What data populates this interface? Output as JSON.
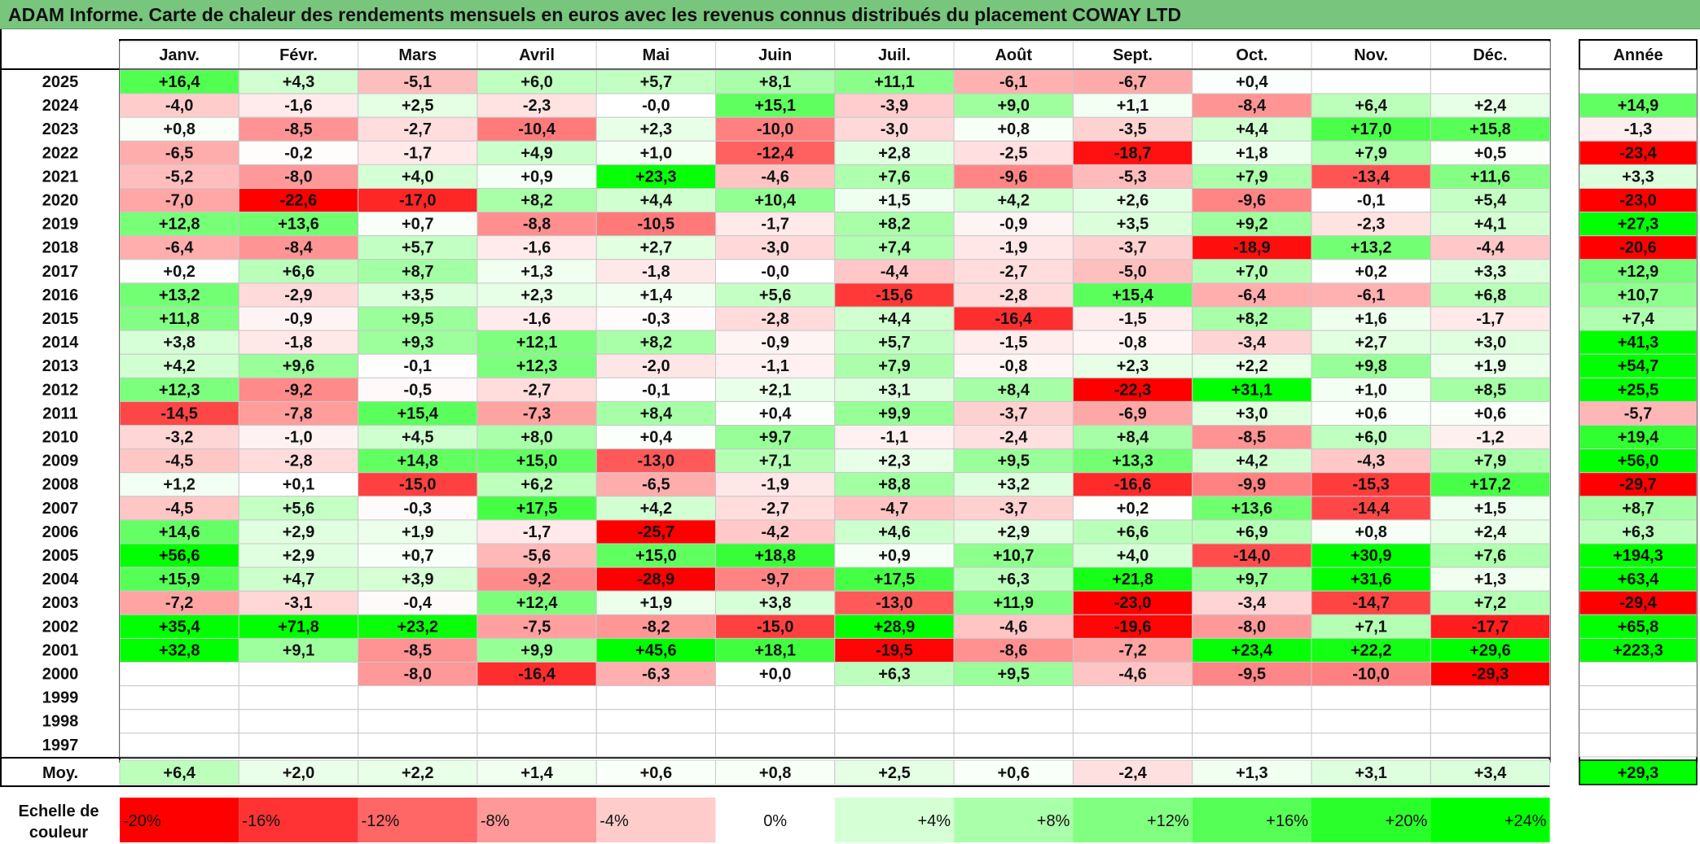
{
  "chart_data": {
    "type": "heatmap",
    "title": "ADAM Informe. Carte de chaleur des rendements mensuels en euros avec les revenus connus distribués du placement COWAY LTD",
    "months": [
      "Janv.",
      "Févr.",
      "Mars",
      "Avril",
      "Mai",
      "Juin",
      "Juil.",
      "Août",
      "Sept.",
      "Oct.",
      "Nov.",
      "Déc."
    ],
    "year_header": "Année",
    "rows": [
      {
        "year": "2025",
        "values": [
          "+16,4",
          "+4,3",
          "-5,1",
          "+6,0",
          "+5,7",
          "+8,1",
          "+11,1",
          "-6,1",
          "-6,7",
          "+0,4",
          "",
          ""
        ],
        "annual": ""
      },
      {
        "year": "2024",
        "values": [
          "-4,0",
          "-1,6",
          "+2,5",
          "-2,3",
          "-0,0",
          "+15,1",
          "-3,9",
          "+9,0",
          "+1,1",
          "-8,4",
          "+6,4",
          "+2,4"
        ],
        "annual": "+14,9"
      },
      {
        "year": "2023",
        "values": [
          "+0,8",
          "-8,5",
          "-2,7",
          "-10,4",
          "+2,3",
          "-10,0",
          "-3,0",
          "+0,8",
          "-3,5",
          "+4,4",
          "+17,0",
          "+15,8"
        ],
        "annual": "-1,3"
      },
      {
        "year": "2022",
        "values": [
          "-6,5",
          "-0,2",
          "-1,7",
          "+4,9",
          "+1,0",
          "-12,4",
          "+2,8",
          "-2,5",
          "-18,7",
          "+1,8",
          "+7,9",
          "+0,5"
        ],
        "annual": "-23,4"
      },
      {
        "year": "2021",
        "values": [
          "-5,2",
          "-8,0",
          "+4,0",
          "+0,9",
          "+23,3",
          "-4,6",
          "+7,6",
          "-9,6",
          "-5,3",
          "+7,9",
          "-13,4",
          "+11,6"
        ],
        "annual": "+3,3"
      },
      {
        "year": "2020",
        "values": [
          "-7,0",
          "-22,6",
          "-17,0",
          "+8,2",
          "+4,4",
          "+10,4",
          "+1,5",
          "+4,2",
          "+2,6",
          "-9,6",
          "-0,1",
          "+5,4"
        ],
        "annual": "-23,0"
      },
      {
        "year": "2019",
        "values": [
          "+12,8",
          "+13,6",
          "+0,7",
          "-8,8",
          "-10,5",
          "-1,7",
          "+8,2",
          "-0,9",
          "+3,5",
          "+9,2",
          "-2,3",
          "+4,1"
        ],
        "annual": "+27,3"
      },
      {
        "year": "2018",
        "values": [
          "-6,4",
          "-8,4",
          "+5,7",
          "-1,6",
          "+2,7",
          "-3,0",
          "+7,4",
          "-1,9",
          "-3,7",
          "-18,9",
          "+13,2",
          "-4,4"
        ],
        "annual": "-20,6"
      },
      {
        "year": "2017",
        "values": [
          "+0,2",
          "+6,6",
          "+8,7",
          "+1,3",
          "-1,8",
          "-0,0",
          "-4,4",
          "-2,7",
          "-5,0",
          "+7,0",
          "+0,2",
          "+3,3"
        ],
        "annual": "+12,9"
      },
      {
        "year": "2016",
        "values": [
          "+13,2",
          "-2,9",
          "+3,5",
          "+2,3",
          "+1,4",
          "+5,6",
          "-15,6",
          "-2,8",
          "+15,4",
          "-6,4",
          "-6,1",
          "+6,8"
        ],
        "annual": "+10,7"
      },
      {
        "year": "2015",
        "values": [
          "+11,8",
          "-0,9",
          "+9,5",
          "-1,6",
          "-0,3",
          "-2,8",
          "+4,4",
          "-16,4",
          "-1,5",
          "+8,2",
          "+1,6",
          "-1,7"
        ],
        "annual": "+7,4"
      },
      {
        "year": "2014",
        "values": [
          "+3,8",
          "-1,8",
          "+9,3",
          "+12,1",
          "+8,2",
          "-0,9",
          "+5,7",
          "-1,5",
          "-0,8",
          "-3,4",
          "+2,7",
          "+3,0"
        ],
        "annual": "+41,3"
      },
      {
        "year": "2013",
        "values": [
          "+4,2",
          "+9,6",
          "-0,1",
          "+12,3",
          "-2,0",
          "-1,1",
          "+7,9",
          "-0,8",
          "+2,3",
          "+2,2",
          "+9,8",
          "+1,9"
        ],
        "annual": "+54,7"
      },
      {
        "year": "2012",
        "values": [
          "+12,3",
          "-9,2",
          "-0,5",
          "-2,7",
          "-0,1",
          "+2,1",
          "+3,1",
          "+8,4",
          "-22,3",
          "+31,1",
          "+1,0",
          "+8,5"
        ],
        "annual": "+25,5"
      },
      {
        "year": "2011",
        "values": [
          "-14,5",
          "-7,8",
          "+15,4",
          "-7,3",
          "+8,4",
          "+0,4",
          "+9,9",
          "-3,7",
          "-6,9",
          "+3,0",
          "+0,6",
          "+0,6"
        ],
        "annual": "-5,7"
      },
      {
        "year": "2010",
        "values": [
          "-3,2",
          "-1,0",
          "+4,5",
          "+8,0",
          "+0,4",
          "+9,7",
          "-1,1",
          "-2,4",
          "+8,4",
          "-8,5",
          "+6,0",
          "-1,2"
        ],
        "annual": "+19,4"
      },
      {
        "year": "2009",
        "values": [
          "-4,5",
          "-2,8",
          "+14,8",
          "+15,0",
          "-13,0",
          "+7,1",
          "+2,3",
          "+9,5",
          "+13,3",
          "+4,2",
          "-4,3",
          "+7,9"
        ],
        "annual": "+56,0"
      },
      {
        "year": "2008",
        "values": [
          "+1,2",
          "+0,1",
          "-15,0",
          "+6,2",
          "-6,5",
          "-1,9",
          "+8,8",
          "+3,2",
          "-16,6",
          "-9,9",
          "-15,3",
          "+17,2"
        ],
        "annual": "-29,7"
      },
      {
        "year": "2007",
        "values": [
          "-4,5",
          "+5,6",
          "-0,3",
          "+17,5",
          "+4,2",
          "-2,7",
          "-4,7",
          "-3,7",
          "+0,2",
          "+13,6",
          "-14,4",
          "+1,5"
        ],
        "annual": "+8,7"
      },
      {
        "year": "2006",
        "values": [
          "+14,6",
          "+2,9",
          "+1,9",
          "-1,7",
          "-25,7",
          "-4,2",
          "+4,6",
          "+2,9",
          "+6,6",
          "+6,9",
          "+0,8",
          "+2,4"
        ],
        "annual": "+6,3"
      },
      {
        "year": "2005",
        "values": [
          "+56,6",
          "+2,9",
          "+0,7",
          "-5,6",
          "+15,0",
          "+18,8",
          "+0,9",
          "+10,7",
          "+4,0",
          "-14,0",
          "+30,9",
          "+7,6"
        ],
        "annual": "+194,3"
      },
      {
        "year": "2004",
        "values": [
          "+15,9",
          "+4,7",
          "+3,9",
          "-9,2",
          "-28,9",
          "-9,7",
          "+17,5",
          "+6,3",
          "+21,8",
          "+9,7",
          "+31,6",
          "+1,3"
        ],
        "annual": "+63,4"
      },
      {
        "year": "2003",
        "values": [
          "-7,2",
          "-3,1",
          "-0,4",
          "+12,4",
          "+1,9",
          "+3,8",
          "-13,0",
          "+11,9",
          "-23,0",
          "-3,4",
          "-14,7",
          "+7,2"
        ],
        "annual": "-29,4"
      },
      {
        "year": "2002",
        "values": [
          "+35,4",
          "+71,8",
          "+23,2",
          "-7,5",
          "-8,2",
          "-15,0",
          "+28,9",
          "-4,6",
          "-19,6",
          "-8,0",
          "+7,1",
          "-17,7"
        ],
        "annual": "+65,8"
      },
      {
        "year": "2001",
        "values": [
          "+32,8",
          "+9,1",
          "-8,5",
          "+9,9",
          "+45,6",
          "+18,1",
          "-19,5",
          "-8,6",
          "-7,2",
          "+23,4",
          "+22,2",
          "+29,6"
        ],
        "annual": "+223,3"
      },
      {
        "year": "2000",
        "values": [
          "",
          "",
          "-8,0",
          "-16,4",
          "-6,3",
          "+0,0",
          "+6,3",
          "+9,5",
          "-4,6",
          "-9,5",
          "-10,0",
          "-29,3"
        ],
        "annual": ""
      },
      {
        "year": "1999",
        "values": [
          "",
          "",
          "",
          "",
          "",
          "",
          "",
          "",
          "",
          "",
          "",
          ""
        ],
        "annual": ""
      },
      {
        "year": "1998",
        "values": [
          "",
          "",
          "",
          "",
          "",
          "",
          "",
          "",
          "",
          "",
          "",
          ""
        ],
        "annual": ""
      },
      {
        "year": "1997",
        "values": [
          "",
          "",
          "",
          "",
          "",
          "",
          "",
          "",
          "",
          "",
          "",
          ""
        ],
        "annual": ""
      }
    ],
    "average": {
      "label": "Moy.",
      "values": [
        "+6,4",
        "+2,0",
        "+2,2",
        "+1,4",
        "+0,6",
        "+0,8",
        "+2,5",
        "+0,6",
        "-2,4",
        "+1,3",
        "+3,1",
        "+3,4"
      ],
      "annual": "+29,3"
    },
    "color_scale": {
      "label_line1": "Echelle de",
      "label_line2": "couleur",
      "stops": [
        "-20%",
        "-16%",
        "-12%",
        "-8%",
        "-4%",
        "0%",
        "+4%",
        "+8%",
        "+12%",
        "+16%",
        "+20%",
        "+24%"
      ]
    },
    "colors": {
      "title_bg": "#78c57d",
      "max_red": "#ff0000",
      "max_green": "#00ff00",
      "neutral": "#ffffff"
    }
  }
}
